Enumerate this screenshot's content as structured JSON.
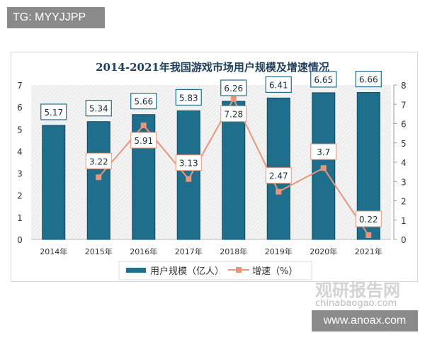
{
  "watermark_top": "TG: MYYJJPP",
  "watermark_bottom": "www.anoax.com",
  "logo": {
    "name": "观研报告网",
    "url": "chinabaogao.com"
  },
  "chart_data": {
    "type": "bar+line",
    "title": "2014-2021年我国游戏市场用户规模及增速情况",
    "categories": [
      "2014年",
      "2015年",
      "2016年",
      "2017年",
      "2018年",
      "2019年",
      "2020年",
      "2021年"
    ],
    "series": [
      {
        "name": "用户规模（亿人）",
        "type": "bar",
        "axis": "left",
        "color": "#1f6e8c",
        "values": [
          5.17,
          5.34,
          5.66,
          5.83,
          6.26,
          6.41,
          6.65,
          6.66
        ]
      },
      {
        "name": "增速（%）",
        "type": "line",
        "axis": "right",
        "color": "#e8967a",
        "values": [
          null,
          3.22,
          5.91,
          3.13,
          7.28,
          2.47,
          3.7,
          0.22
        ]
      }
    ],
    "y_left": {
      "ylim": [
        0,
        7
      ],
      "ticks": [
        "0",
        "1",
        "2",
        "3",
        "4",
        "5",
        "6",
        "7"
      ]
    },
    "y_right": {
      "ylim": [
        0,
        8
      ],
      "ticks": [
        "0",
        "1",
        "2",
        "3",
        "4",
        "5",
        "6",
        "7",
        "8"
      ]
    },
    "legend": "bottom",
    "grid": false
  }
}
